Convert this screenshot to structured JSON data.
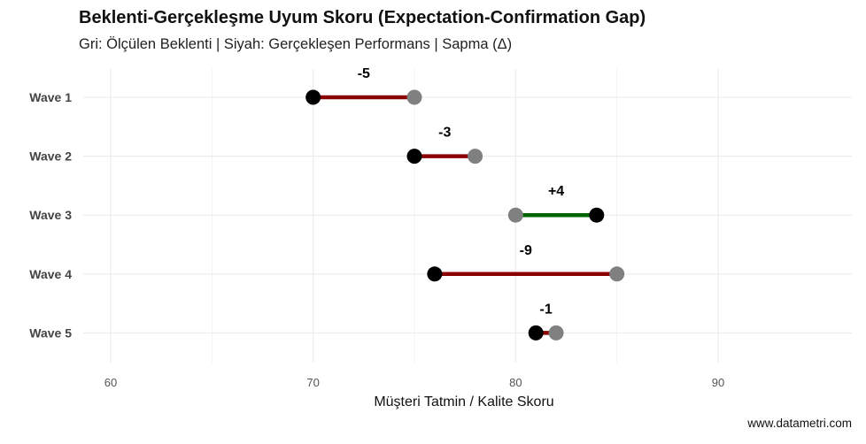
{
  "chart_data": {
    "type": "dumbbell",
    "title": "Beklenti-Gerçekleşme Uyum Skoru (Expectation-Confirmation Gap)",
    "subtitle": "Gri: Ölçülen Beklenti  |  Siyah: Gerçekleşen Performans  |  Sapma (Δ)",
    "xlabel": "Müşteri Tatmin / Kalite Skoru",
    "ylabel": "",
    "caption": "www.datametri.com",
    "xlim": [
      58.5,
      97.5
    ],
    "xticks": [
      60,
      70,
      80,
      90
    ],
    "grid": true,
    "legend": "none",
    "categories": [
      "Wave 1",
      "Wave 2",
      "Wave 3",
      "Wave 4",
      "Wave 5"
    ],
    "series": [
      {
        "name": "Ölçülen Beklenti",
        "color": "#808080",
        "values": [
          75,
          78,
          80,
          85,
          82
        ]
      },
      {
        "name": "Gerçekleşen Performans",
        "color": "#000000",
        "values": [
          70,
          75,
          84,
          76,
          81
        ]
      }
    ],
    "gap_labels": [
      "-5",
      "-3",
      "+4",
      "-9",
      "-1"
    ],
    "colors": {
      "negative": "#8b0000",
      "positive": "#006400",
      "grid": "#ebebeb"
    }
  }
}
